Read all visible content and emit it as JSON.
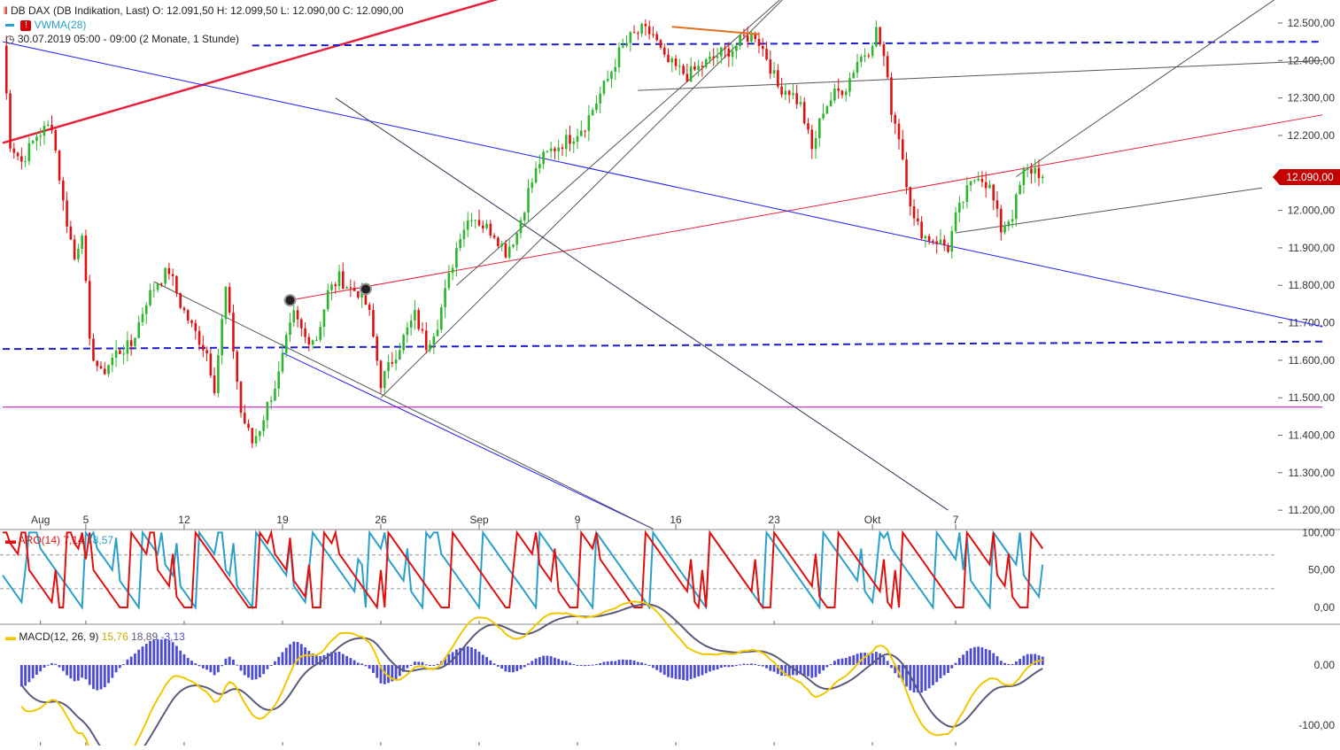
{
  "header": {
    "line1": "DB DAX (DB Indikation, Last)  O: 12.091,50  H: 12.099,50  L: 12.090,00  C: 12.090,00",
    "line2": "VWMA(28)",
    "line3": "30.07.2019 05:00 - 09:00  (2 Monate, 1 Stunde)"
  },
  "last_price_label": "12.090,00",
  "aroon_label": {
    "name": "ARO(14)",
    "v1": "7,14",
    "v2": "78,57"
  },
  "macd_label": {
    "name": "MACD(12, 26, 9)",
    "v1": "15,76",
    "v2": "18,89",
    "v3": "-3,13"
  },
  "colors": {
    "up": "#2db52d",
    "down": "#e01010",
    "aroon_up": "#e01010",
    "aroon_down": "#2a9fc7",
    "macd": "#f0c800",
    "signal": "#5a5a7a",
    "hist": "#4b4bd6",
    "trend_blue": "#1a1aff",
    "trend_red": "#e8203c",
    "support": "#1c1ccf",
    "magenta": "#c000c0"
  },
  "chart_data": [
    {
      "type": "candlestick",
      "title": "DB DAX (DB Indikation, Last)",
      "y_ticks": [
        "12.500,00",
        "12.400,00",
        "12.300,00",
        "12.200,00",
        "12.100,00",
        "12.000,00",
        "11.900,00",
        "11.800,00",
        "11.700,00",
        "11.600,00",
        "11.500,00",
        "11.400,00",
        "11.300,00",
        "11.200,00"
      ],
      "y_tick_values": [
        12500,
        12400,
        12300,
        12200,
        12100,
        12000,
        11900,
        11800,
        11700,
        11600,
        11500,
        11400,
        11300,
        11200
      ],
      "ylim": [
        11150,
        12550
      ],
      "x_ticks": [
        "Aug",
        "5",
        "12",
        "19",
        "26",
        "Sep",
        "9",
        "16",
        "23",
        "Okt",
        "7"
      ],
      "x_tick_bars": [
        10,
        22,
        48,
        74,
        100,
        126,
        152,
        178,
        204,
        230,
        252
      ],
      "bar_count": 276,
      "close_path": [
        [
          0,
          12440
        ],
        [
          2,
          12180
        ],
        [
          5,
          12130
        ],
        [
          9,
          12200
        ],
        [
          13,
          12230
        ],
        [
          16,
          12020
        ],
        [
          19,
          11870
        ],
        [
          21,
          11950
        ],
        [
          23,
          11640
        ],
        [
          26,
          11560
        ],
        [
          30,
          11620
        ],
        [
          34,
          11640
        ],
        [
          38,
          11760
        ],
        [
          41,
          11810
        ],
        [
          44,
          11840
        ],
        [
          47,
          11750
        ],
        [
          50,
          11690
        ],
        [
          54,
          11620
        ],
        [
          56,
          11530
        ],
        [
          59,
          11790
        ],
        [
          61,
          11630
        ],
        [
          63,
          11460
        ],
        [
          66,
          11380
        ],
        [
          68,
          11420
        ],
        [
          70,
          11480
        ],
        [
          73,
          11560
        ],
        [
          75,
          11650
        ],
        [
          77,
          11720
        ],
        [
          80,
          11660
        ],
        [
          83,
          11660
        ],
        [
          86,
          11780
        ],
        [
          89,
          11820
        ],
        [
          92,
          11790
        ],
        [
          95,
          11780
        ],
        [
          97,
          11720
        ],
        [
          100,
          11540
        ],
        [
          103,
          11600
        ],
        [
          106,
          11660
        ],
        [
          109,
          11720
        ],
        [
          112,
          11640
        ],
        [
          115,
          11700
        ],
        [
          118,
          11820
        ],
        [
          121,
          11940
        ],
        [
          124,
          11990
        ],
        [
          127,
          11960
        ],
        [
          130,
          11940
        ],
        [
          133,
          11890
        ],
        [
          136,
          11940
        ],
        [
          139,
          12050
        ],
        [
          142,
          12130
        ],
        [
          145,
          12160
        ],
        [
          148,
          12180
        ],
        [
          151,
          12200
        ],
        [
          154,
          12230
        ],
        [
          157,
          12290
        ],
        [
          160,
          12350
        ],
        [
          163,
          12420
        ],
        [
          166,
          12460
        ],
        [
          169,
          12480
        ],
        [
          172,
          12470
        ],
        [
          175,
          12400
        ],
        [
          178,
          12380
        ],
        [
          181,
          12360
        ],
        [
          184,
          12380
        ],
        [
          187,
          12400
        ],
        [
          190,
          12420
        ],
        [
          193,
          12430
        ],
        [
          196,
          12460
        ],
        [
          199,
          12470
        ],
        [
          202,
          12410
        ],
        [
          205,
          12330
        ],
        [
          208,
          12320
        ],
        [
          211,
          12280
        ],
        [
          214,
          12160
        ],
        [
          217,
          12270
        ],
        [
          220,
          12310
        ],
        [
          223,
          12330
        ],
        [
          226,
          12400
        ],
        [
          229,
          12430
        ],
        [
          231,
          12480
        ],
        [
          233,
          12410
        ],
        [
          235,
          12270
        ],
        [
          237,
          12200
        ],
        [
          239,
          12080
        ],
        [
          241,
          11970
        ],
        [
          244,
          11930
        ],
        [
          247,
          11920
        ],
        [
          250,
          11900
        ],
        [
          252,
          11980
        ],
        [
          255,
          12050
        ],
        [
          258,
          12100
        ],
        [
          261,
          12060
        ],
        [
          264,
          11950
        ],
        [
          267,
          11990
        ],
        [
          270,
          12100
        ],
        [
          273,
          12110
        ],
        [
          275,
          12090
        ]
      ],
      "last": 12090.0,
      "overlays": [
        {
          "name": "red-trend-steep",
          "color": "#e8203c",
          "points": [
            [
              0,
              12180
            ],
            [
              150,
              12620
            ]
          ]
        },
        {
          "name": "red-trend-main",
          "color": "#e8203c",
          "points": [
            [
              76,
              11760
            ],
            [
              349,
              12255
            ]
          ]
        },
        {
          "name": "blue-trend-down",
          "color": "#1a1aff",
          "points": [
            [
              0,
              12450
            ],
            [
              349,
              11690
            ]
          ]
        },
        {
          "name": "blue-channel-lower",
          "color": "#1a1aff",
          "points": [
            [
              74,
              11620
            ],
            [
              172,
              11150
            ]
          ]
        },
        {
          "name": "gray-lower-channel",
          "color": "#555555",
          "points": [
            [
              40,
              11810
            ],
            [
              172,
              11150
            ]
          ]
        },
        {
          "name": "support-upper-dashed",
          "color": "#1c1ccf",
          "dashed": true,
          "points": [
            [
              66,
              12440
            ],
            [
              349,
              12450
            ]
          ]
        },
        {
          "name": "support-lower-dashed",
          "color": "#1c1ccf",
          "dashed": true,
          "points": [
            [
              0,
              11630
            ],
            [
              349,
              11650
            ]
          ]
        },
        {
          "name": "magenta-level",
          "color": "#c000c0",
          "points": [
            [
              0,
              11475
            ],
            [
              349,
              11475
            ]
          ]
        },
        {
          "name": "gray-rise-1",
          "color": "#555555",
          "points": [
            [
              100,
              11500
            ],
            [
              212,
              12620
            ]
          ]
        },
        {
          "name": "gray-rise-2",
          "color": "#555555",
          "points": [
            [
              120,
              11800
            ],
            [
              212,
              12620
            ]
          ]
        },
        {
          "name": "gray-upper-resist",
          "color": "#555555",
          "points": [
            [
              168,
              12320
            ],
            [
              349,
              12400
            ]
          ]
        },
        {
          "name": "gray-right-up",
          "color": "#555555",
          "points": [
            [
              268,
              12090
            ],
            [
              349,
              12650
            ]
          ]
        },
        {
          "name": "gray-right-lower",
          "color": "#555555",
          "points": [
            [
              252,
              11940
            ],
            [
              333,
              12060
            ]
          ]
        },
        {
          "name": "dark-fan",
          "color": "#333355",
          "points": [
            [
              88,
              12300
            ],
            [
              250,
              11200
            ]
          ]
        }
      ]
    },
    {
      "type": "line",
      "title": "ARO(14)",
      "y_ticks": [
        "100,00",
        "50,00",
        "0,00"
      ],
      "y_tick_values": [
        100,
        50,
        0
      ],
      "ylim": [
        -5,
        105
      ],
      "series": [
        {
          "name": "Aroon Up",
          "color": "#e01010"
        },
        {
          "name": "Aroon Down",
          "color": "#2a9fc7"
        }
      ]
    },
    {
      "type": "line",
      "title": "MACD(12, 26, 9)",
      "y_ticks": [
        "0,00",
        "-100,00"
      ],
      "y_tick_values": [
        0,
        -100
      ],
      "ylim": [
        -125,
        60
      ],
      "series": [
        {
          "name": "MACD",
          "color": "#f0c800"
        },
        {
          "name": "Signal",
          "color": "#5a5a7a"
        },
        {
          "name": "Histogram",
          "color": "#4b4bd6"
        }
      ]
    }
  ]
}
